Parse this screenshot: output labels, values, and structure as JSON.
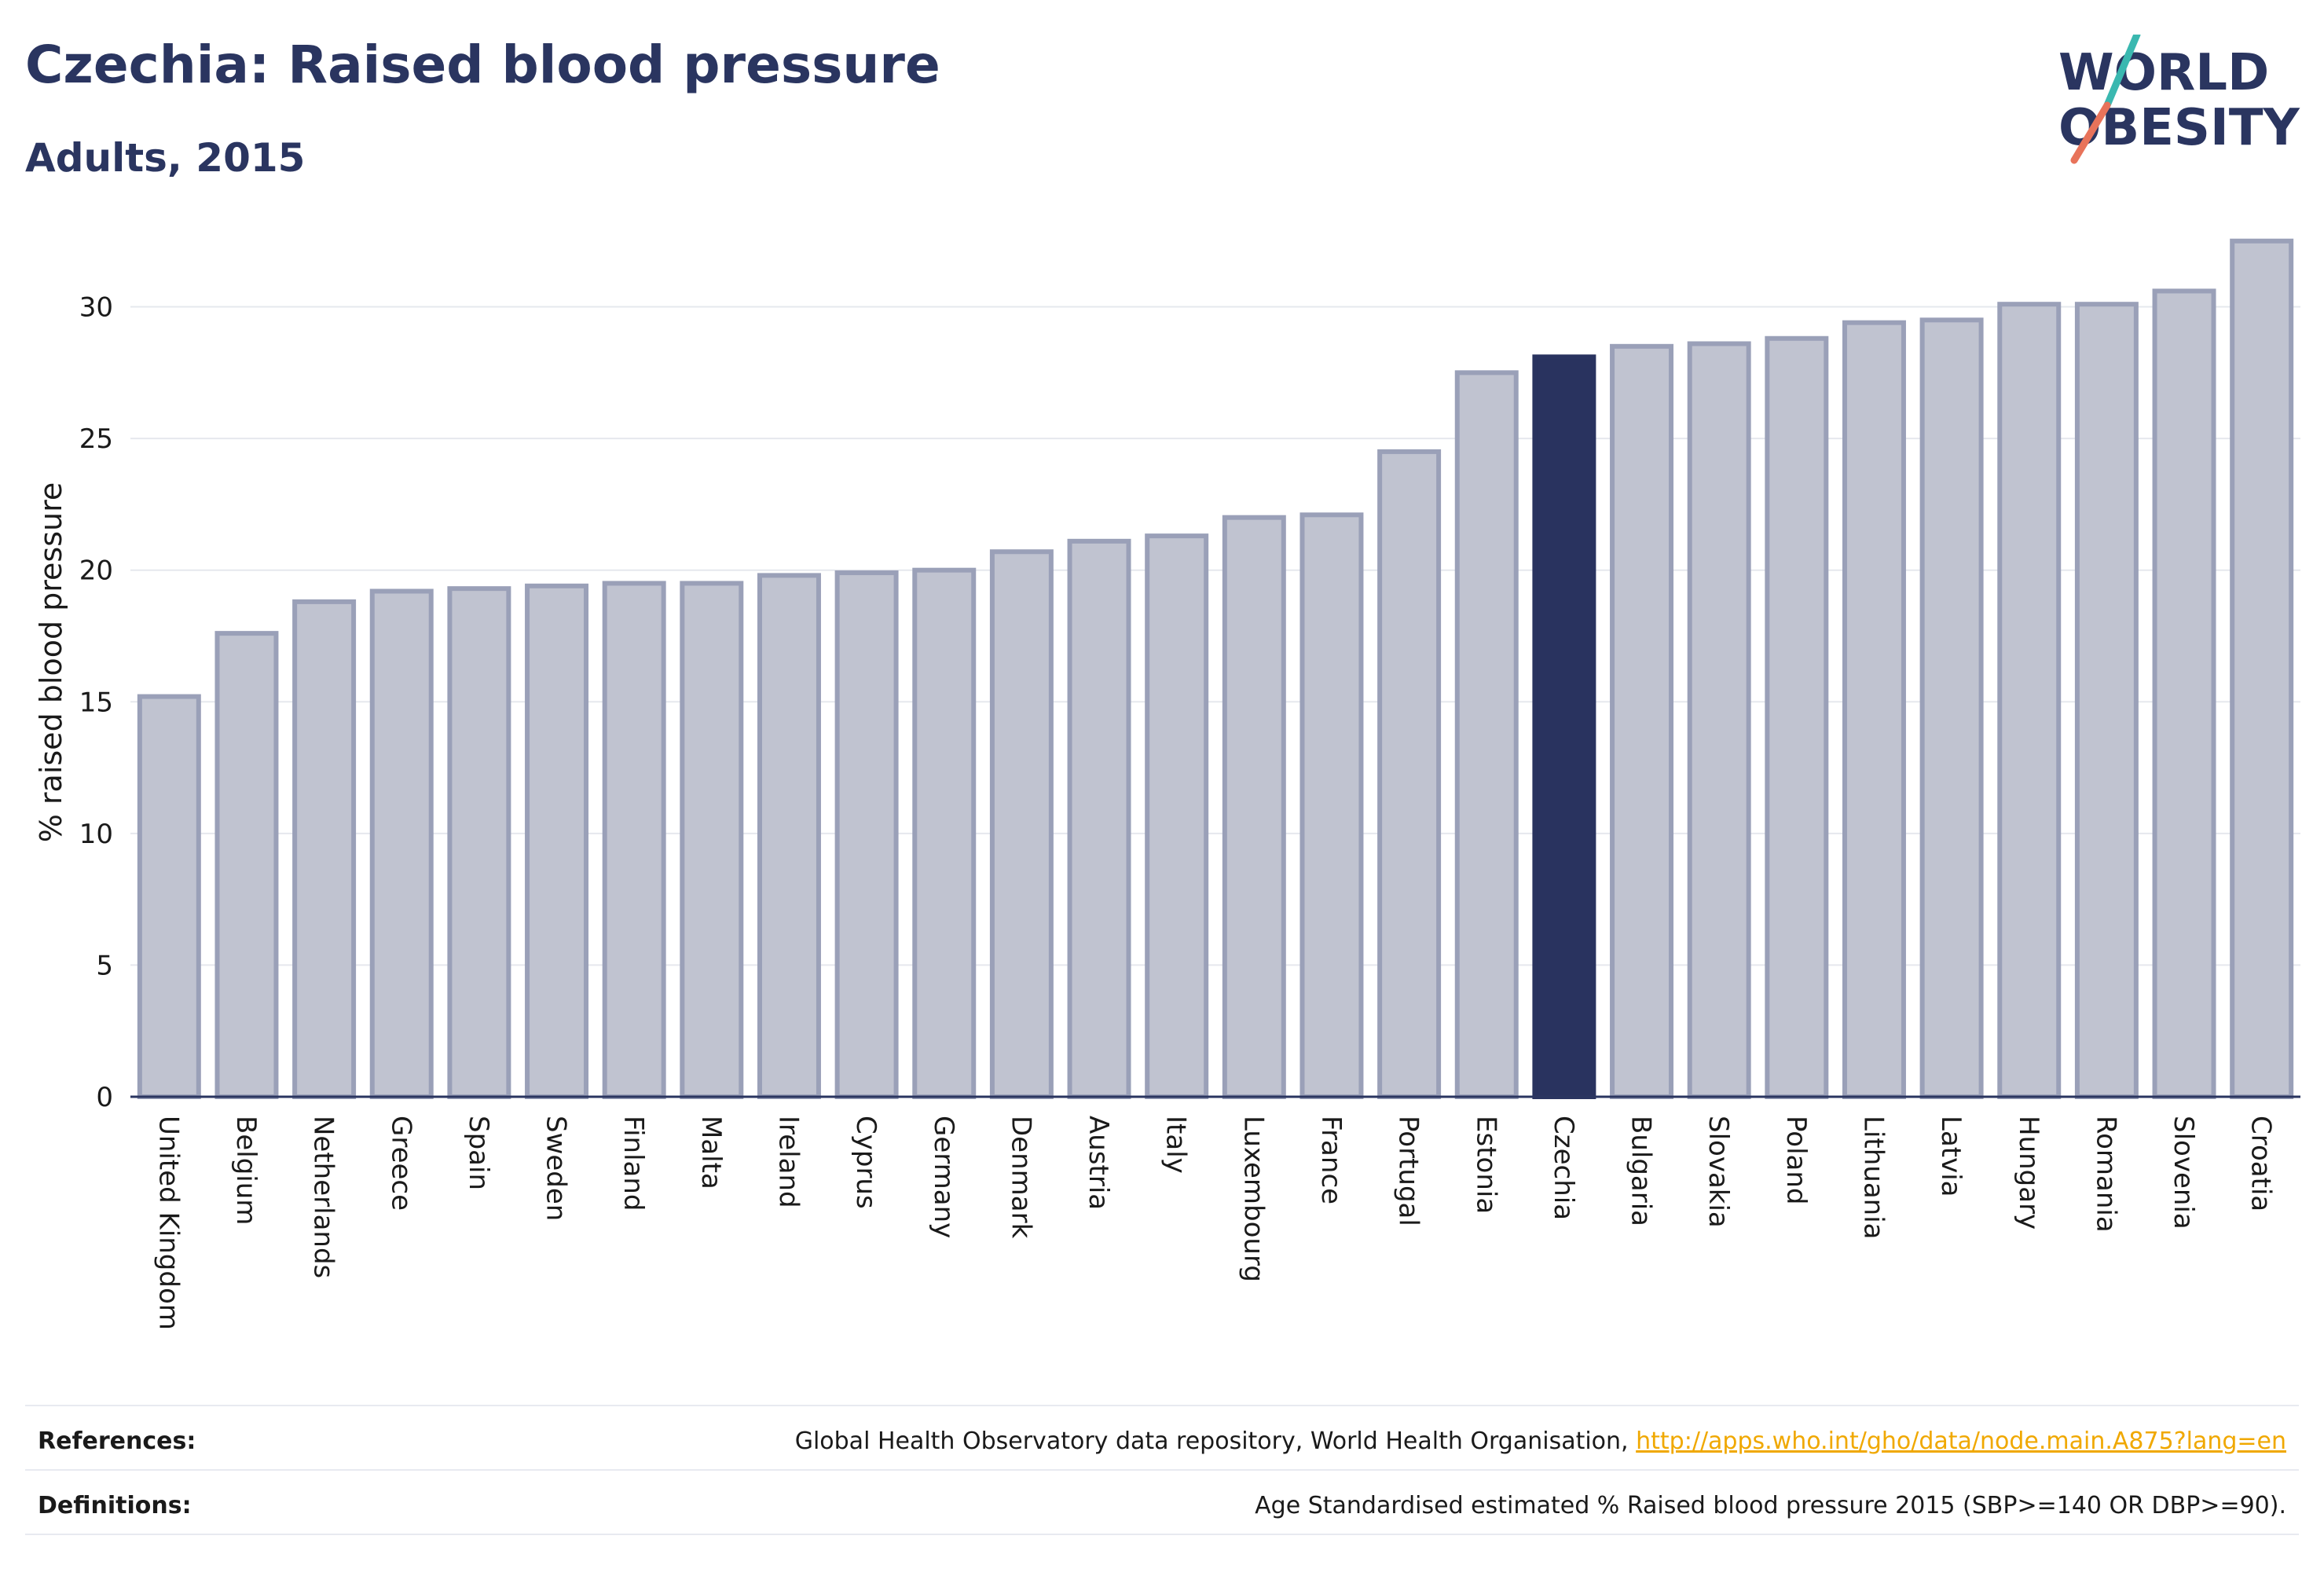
{
  "header": {
    "title": "Czechia: Raised blood pressure",
    "subtitle": "Adults, 2015"
  },
  "logo": {
    "line1": "WORLD",
    "line2": "OBESITY",
    "text_color": "#2a3560",
    "slash_top_color": "#3ab8b0",
    "slash_bottom_color": "#e8735a"
  },
  "chart_data": {
    "type": "bar",
    "categories": [
      "United Kingdom",
      "Belgium",
      "Netherlands",
      "Greece",
      "Spain",
      "Sweden",
      "Finland",
      "Malta",
      "Ireland",
      "Cyprus",
      "Germany",
      "Denmark",
      "Austria",
      "Italy",
      "Luxembourg",
      "France",
      "Portugal",
      "Estonia",
      "Czechia",
      "Bulgaria",
      "Slovakia",
      "Poland",
      "Lithuania",
      "Latvia",
      "Hungary",
      "Romania",
      "Slovenia",
      "Croatia"
    ],
    "values": [
      15.2,
      17.6,
      18.8,
      19.2,
      19.3,
      19.4,
      19.5,
      19.5,
      19.8,
      19.9,
      20.0,
      20.7,
      21.1,
      21.3,
      22.0,
      22.1,
      24.5,
      27.5,
      28.1,
      28.5,
      28.6,
      28.8,
      29.4,
      29.5,
      30.1,
      30.1,
      30.6,
      32.5
    ],
    "highlight": "Czechia",
    "ylabel": "% raised blood pressure",
    "xlabel": "",
    "ylim": [
      0,
      33
    ],
    "yticks": [
      0,
      5,
      10,
      15,
      20,
      25,
      30
    ],
    "grid": true,
    "colors": {
      "bar_fill": "#c0c3d0",
      "bar_stroke": "#9aa0b8",
      "highlight_fill": "#29335f",
      "grid": "#e6e8ee",
      "axis": "#2a3560"
    }
  },
  "footer": {
    "references_label": "References:",
    "references_text": "Global Health Observatory data repository, World Health Organisation,",
    "references_link": "http://apps.who.int/gho/data/node.main.A875?lang=en",
    "definitions_label": "Definitions:",
    "definitions_text": "Age Standardised estimated % Raised blood pressure 2015 (SBP>=140 OR DBP>=90)."
  }
}
